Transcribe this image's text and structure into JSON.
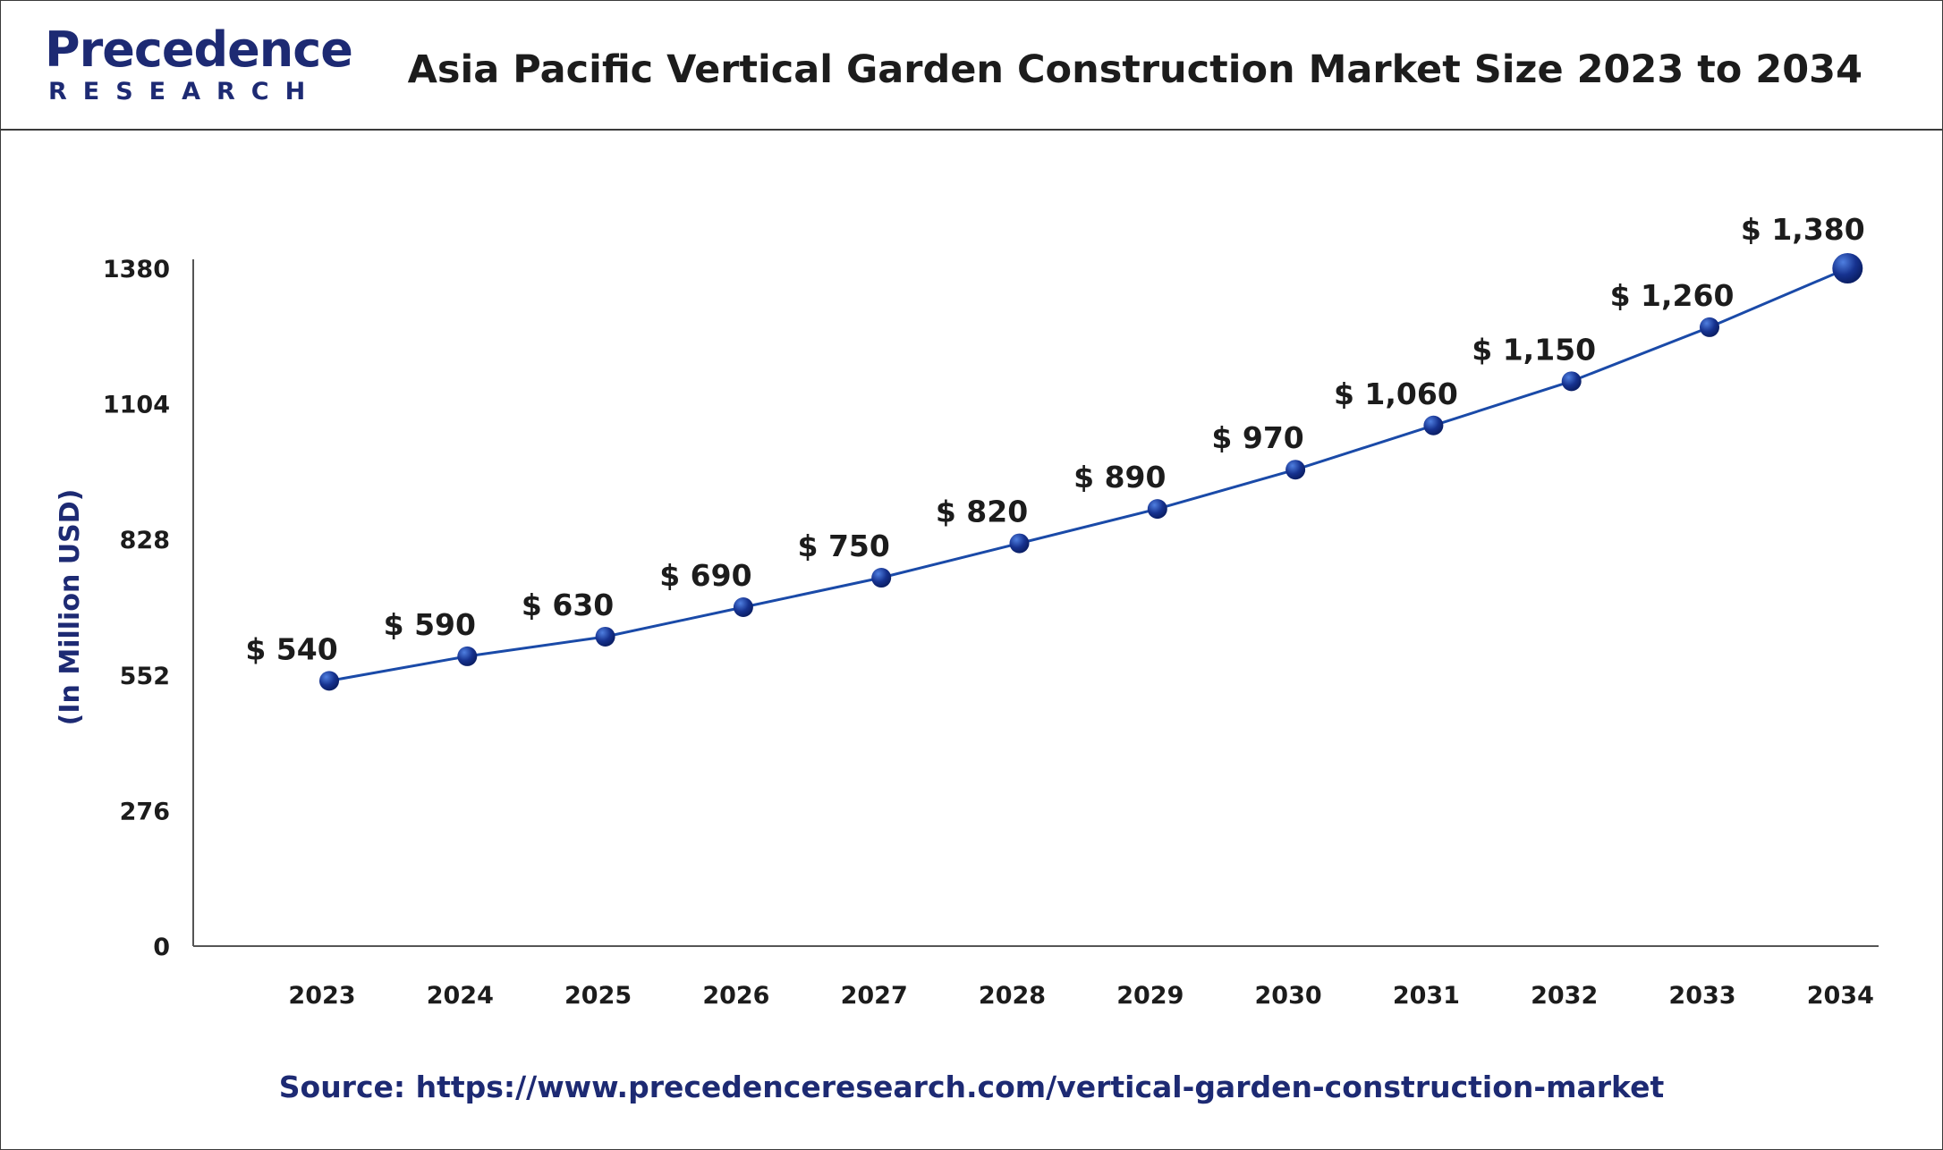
{
  "brand": {
    "name": "Precedence",
    "sub": "RESEARCH",
    "color": "#1d2a73"
  },
  "header": {
    "title": "Asia Pacific Vertical Garden Construction Market Size 2023 to 2034"
  },
  "source": {
    "text": "Source: https://www.precedenceresearch.com/vertical-garden-construction-market"
  },
  "chart_data": {
    "type": "line",
    "title": "Asia Pacific Vertical Garden Construction Market Size 2023 to 2034",
    "xlabel": "",
    "ylabel": "(In Million USD)",
    "categories": [
      "2023",
      "2024",
      "2025",
      "2026",
      "2027",
      "2028",
      "2029",
      "2030",
      "2031",
      "2032",
      "2033",
      "2034"
    ],
    "series": [
      {
        "values": [
          540,
          590,
          630,
          690,
          750,
          820,
          890,
          970,
          1060,
          1150,
          1260,
          1380
        ],
        "data_labels": [
          "$ 540",
          "$ 590",
          "$ 630",
          "$ 690",
          "$ 750",
          "$ 820",
          "$ 890",
          "$ 970",
          "$ 1,060",
          "$ 1,150",
          "$ 1,260",
          "$ 1,380"
        ]
      }
    ],
    "y_ticks": [
      0,
      276,
      552,
      828,
      1104,
      1380
    ],
    "ylim": [
      0,
      1380
    ],
    "grid": false,
    "legend": "none",
    "colors": {
      "line": "#1a4aa8",
      "marker": "#16328f",
      "axis": "#555555"
    }
  }
}
